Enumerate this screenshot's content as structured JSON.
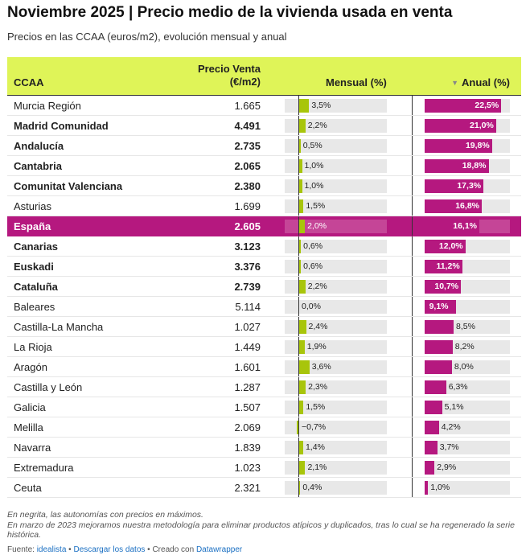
{
  "title": "Noviembre 2025 | Precio medio de la vivienda usada en venta",
  "subtitle": "Precios en las CCAA (euros/m2), evolución mensual y anual",
  "columns": {
    "ccaa": "CCAA",
    "price_line1": "Precio Venta",
    "price_line2": "(€/m2)",
    "mensual": "Mensual (%)",
    "anual": "Anual (%)",
    "sort_icon": "triangle-down-icon"
  },
  "colors": {
    "header_bg": "#dff458",
    "mensual_bar": "#a8c50b",
    "anual_bar": "#b5187f",
    "highlight_row": "#b5187f"
  },
  "chart_data": {
    "type": "table",
    "mensual_range": [
      -1,
      6.5
    ],
    "anual_range": [
      0,
      25
    ],
    "rows": [
      {
        "name": "Murcia Región",
        "price": "1.665",
        "mensual": 3.5,
        "mensual_label": "3,5%",
        "anual": 22.5,
        "anual_label": "22,5%",
        "bold": false,
        "highlight": false
      },
      {
        "name": "Madrid Comunidad",
        "price": "4.491",
        "mensual": 2.2,
        "mensual_label": "2,2%",
        "anual": 21.0,
        "anual_label": "21,0%",
        "bold": true,
        "highlight": false
      },
      {
        "name": "Andalucía",
        "price": "2.735",
        "mensual": 0.5,
        "mensual_label": "0,5%",
        "anual": 19.8,
        "anual_label": "19,8%",
        "bold": true,
        "highlight": false
      },
      {
        "name": "Cantabria",
        "price": "2.065",
        "mensual": 1.0,
        "mensual_label": "1,0%",
        "anual": 18.8,
        "anual_label": "18,8%",
        "bold": true,
        "highlight": false
      },
      {
        "name": "Comunitat Valenciana",
        "price": "2.380",
        "mensual": 1.0,
        "mensual_label": "1,0%",
        "anual": 17.3,
        "anual_label": "17,3%",
        "bold": true,
        "highlight": false
      },
      {
        "name": "Asturias",
        "price": "1.699",
        "mensual": 1.5,
        "mensual_label": "1,5%",
        "anual": 16.8,
        "anual_label": "16,8%",
        "bold": false,
        "highlight": false
      },
      {
        "name": "España",
        "price": "2.605",
        "mensual": 2.0,
        "mensual_label": "2,0%",
        "anual": 16.1,
        "anual_label": "16,1%",
        "bold": true,
        "highlight": true
      },
      {
        "name": "Canarias",
        "price": "3.123",
        "mensual": 0.6,
        "mensual_label": "0,6%",
        "anual": 12.0,
        "anual_label": "12,0%",
        "bold": true,
        "highlight": false
      },
      {
        "name": "Euskadi",
        "price": "3.376",
        "mensual": 0.6,
        "mensual_label": "0,6%",
        "anual": 11.2,
        "anual_label": "11,2%",
        "bold": true,
        "highlight": false
      },
      {
        "name": "Cataluña",
        "price": "2.739",
        "mensual": 2.2,
        "mensual_label": "2,2%",
        "anual": 10.7,
        "anual_label": "10,7%",
        "bold": true,
        "highlight": false
      },
      {
        "name": "Baleares",
        "price": "5.114",
        "mensual": 0.0,
        "mensual_label": "0,0%",
        "anual": 9.1,
        "anual_label": "9,1%",
        "bold": false,
        "highlight": false
      },
      {
        "name": "Castilla-La Mancha",
        "price": "1.027",
        "mensual": 2.4,
        "mensual_label": "2,4%",
        "anual": 8.5,
        "anual_label": "8,5%",
        "bold": false,
        "highlight": false
      },
      {
        "name": "La Rioja",
        "price": "1.449",
        "mensual": 1.9,
        "mensual_label": "1,9%",
        "anual": 8.2,
        "anual_label": "8,2%",
        "bold": false,
        "highlight": false
      },
      {
        "name": "Aragón",
        "price": "1.601",
        "mensual": 3.6,
        "mensual_label": "3,6%",
        "anual": 8.0,
        "anual_label": "8,0%",
        "bold": false,
        "highlight": false
      },
      {
        "name": "Castilla y León",
        "price": "1.287",
        "mensual": 2.3,
        "mensual_label": "2,3%",
        "anual": 6.3,
        "anual_label": "6,3%",
        "bold": false,
        "highlight": false
      },
      {
        "name": "Galicia",
        "price": "1.507",
        "mensual": 1.5,
        "mensual_label": "1,5%",
        "anual": 5.1,
        "anual_label": "5,1%",
        "bold": false,
        "highlight": false
      },
      {
        "name": "Melilla",
        "price": "2.069",
        "mensual": -0.7,
        "mensual_label": "−0,7%",
        "anual": 4.2,
        "anual_label": "4,2%",
        "bold": false,
        "highlight": false
      },
      {
        "name": "Navarra",
        "price": "1.839",
        "mensual": 1.4,
        "mensual_label": "1,4%",
        "anual": 3.7,
        "anual_label": "3,7%",
        "bold": false,
        "highlight": false
      },
      {
        "name": "Extremadura",
        "price": "1.023",
        "mensual": 2.1,
        "mensual_label": "2,1%",
        "anual": 2.9,
        "anual_label": "2,9%",
        "bold": false,
        "highlight": false
      },
      {
        "name": "Ceuta",
        "price": "2.321",
        "mensual": 0.4,
        "mensual_label": "0,4%",
        "anual": 1.0,
        "anual_label": "1,0%",
        "bold": false,
        "highlight": false
      }
    ]
  },
  "notes": {
    "line1": "En negrita, las autonomías con precios en máximos.",
    "line2": "En marzo de 2023 mejoramos nuestra metodología para eliminar productos atípicos y duplicados, tras lo cual se ha regenerado la serie histórica."
  },
  "footer": {
    "source_label": "Fuente: ",
    "source_link": "idealista",
    "sep1": " • ",
    "download_link": "Descargar los datos",
    "sep2": " • Creado con ",
    "tool_link": "Datawrapper"
  }
}
